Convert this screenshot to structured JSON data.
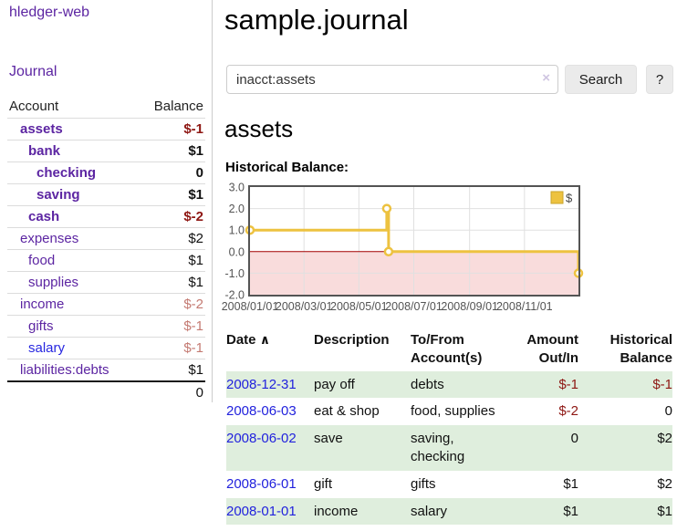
{
  "sidebar": {
    "app_title": "hledger-web",
    "journal_link": "Journal",
    "accounts_table": {
      "headers": {
        "account": "Account",
        "balance": "Balance"
      },
      "rows": [
        {
          "name": "assets",
          "level": 1,
          "bold": true,
          "balance": "$-1",
          "balance_style": "neg-strong"
        },
        {
          "name": "bank",
          "level": 2,
          "bold": true,
          "balance": "$1",
          "balance_style": "pos"
        },
        {
          "name": "checking",
          "level": 3,
          "bold": true,
          "balance": "0",
          "balance_style": "pos"
        },
        {
          "name": "saving",
          "level": 3,
          "bold": true,
          "balance": "$1",
          "balance_style": "pos"
        },
        {
          "name": "cash",
          "level": 2,
          "bold": true,
          "balance": "$-2",
          "balance_style": "neg-strong"
        },
        {
          "name": "expenses",
          "level": 1,
          "bold": false,
          "balance": "$2",
          "balance_style": "pos"
        },
        {
          "name": "food",
          "level": 2,
          "bold": false,
          "balance": "$1",
          "balance_style": "pos"
        },
        {
          "name": "supplies",
          "level": 2,
          "bold": false,
          "balance": "$1",
          "balance_style": "pos"
        },
        {
          "name": "income",
          "level": 1,
          "bold": false,
          "balance": "$-2",
          "balance_style": "neg-light"
        },
        {
          "name": "gifts",
          "level": 2,
          "bold": false,
          "balance": "$-1",
          "balance_style": "neg-light"
        },
        {
          "name": "salary",
          "level": 2,
          "bold": false,
          "link_style": "blue",
          "balance": "$-1",
          "balance_style": "neg-light"
        },
        {
          "name": "liabilities:debts",
          "level": 1,
          "bold": false,
          "balance": "$1",
          "balance_style": "pos"
        }
      ],
      "total": "0"
    }
  },
  "main": {
    "title": "sample.journal",
    "search": {
      "value": "inacct:assets",
      "clear_icon": "×",
      "button_label": "Search",
      "help_label": "?"
    },
    "account_heading": "assets",
    "chart_label": "Historical Balance:",
    "register_table": {
      "headers": {
        "date": "Date",
        "sort_indicator": "∧",
        "description": "Description",
        "accounts": "To/From Account(s)",
        "amount": "Amount Out/In",
        "balance": "Historical Balance"
      },
      "rows": [
        {
          "date": "2008-12-31",
          "description": "pay off",
          "accounts": "debts",
          "amount": "$-1",
          "balance": "$-1"
        },
        {
          "date": "2008-06-03",
          "description": "eat & shop",
          "accounts": "food, supplies",
          "amount": "$-2",
          "balance": "0"
        },
        {
          "date": "2008-06-02",
          "description": "save",
          "accounts": "saving, checking",
          "amount": "0",
          "balance": "$2"
        },
        {
          "date": "2008-06-01",
          "description": "gift",
          "accounts": "gifts",
          "amount": "$1",
          "balance": "$2"
        },
        {
          "date": "2008-01-01",
          "description": "income",
          "accounts": "salary",
          "amount": "$1",
          "balance": "$1"
        }
      ]
    }
  },
  "chart_data": {
    "type": "line",
    "title": "Historical Balance:",
    "style": "step-after",
    "series": [
      {
        "name": "$",
        "color": "#edc240",
        "points": [
          {
            "date": "2008-01-01",
            "value": 1
          },
          {
            "date": "2008-06-01",
            "value": 2
          },
          {
            "date": "2008-06-03",
            "value": 0
          },
          {
            "date": "2008-12-31",
            "value": -1
          }
        ]
      }
    ],
    "x_range": [
      "2008-01-01",
      "2008-12-31"
    ],
    "x_ticks": [
      "2008/01/01",
      "2008/03/01",
      "2008/05/01",
      "2008/07/01",
      "2008/09/01",
      "2008/11/01"
    ],
    "y_ticks": [
      3.0,
      2.0,
      1.0,
      0.0,
      -1.0,
      -2.0
    ],
    "ylim": [
      -2,
      3
    ],
    "grid": true,
    "legend": {
      "label": "$",
      "position": "top-right"
    },
    "colors": {
      "negative_region_fill": "#f9dcdc",
      "zero_line": "#a40000",
      "gridline": "#e0e0e0",
      "border": "#545454"
    }
  }
}
